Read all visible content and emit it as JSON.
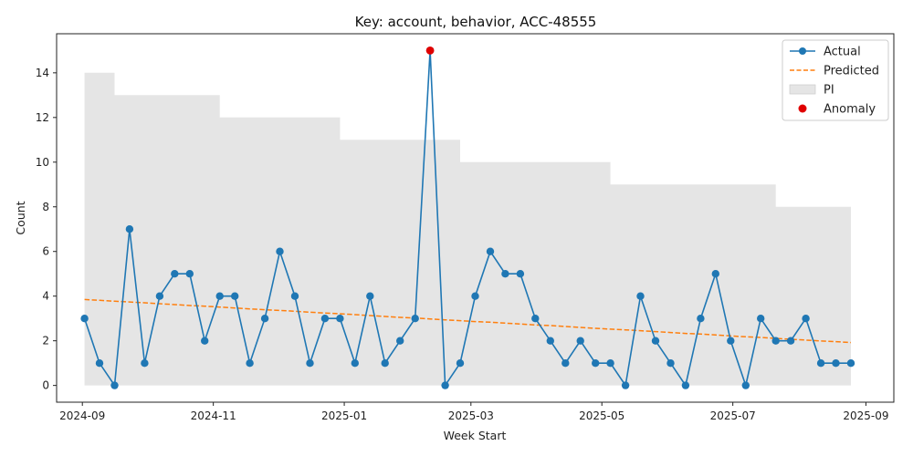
{
  "chart_data": {
    "type": "line",
    "title": "Key: account, behavior, ACC-48555",
    "xlabel": "Week Start",
    "ylabel": "Count",
    "x_ticks": [
      "2024-09",
      "2024-11",
      "2025-01",
      "2025-03",
      "2025-05",
      "2025-07",
      "2025-09"
    ],
    "y_ticks": [
      "0",
      "2",
      "4",
      "6",
      "8",
      "10",
      "12",
      "14"
    ],
    "xlim": [
      "2024-08-20",
      "2025-09-14"
    ],
    "ylim": [
      -0.75,
      15.75
    ],
    "grid": false,
    "legend_position": "top-right",
    "x": [
      "2024-09-02",
      "2024-09-09",
      "2024-09-16",
      "2024-09-23",
      "2024-09-30",
      "2024-10-07",
      "2024-10-14",
      "2024-10-21",
      "2024-10-28",
      "2024-11-04",
      "2024-11-11",
      "2024-11-18",
      "2024-11-25",
      "2024-12-02",
      "2024-12-09",
      "2024-12-16",
      "2024-12-23",
      "2024-12-30",
      "2025-01-06",
      "2025-01-13",
      "2025-01-20",
      "2025-01-27",
      "2025-02-03",
      "2025-02-10",
      "2025-02-17",
      "2025-02-24",
      "2025-03-03",
      "2025-03-10",
      "2025-03-17",
      "2025-03-24",
      "2025-03-31",
      "2025-04-07",
      "2025-04-14",
      "2025-04-21",
      "2025-04-28",
      "2025-05-05",
      "2025-05-12",
      "2025-05-19",
      "2025-05-26",
      "2025-06-02",
      "2025-06-09",
      "2025-06-16",
      "2025-06-23",
      "2025-06-30",
      "2025-07-07",
      "2025-07-14",
      "2025-07-21",
      "2025-07-28",
      "2025-08-04",
      "2025-08-11",
      "2025-08-18",
      "2025-08-25"
    ],
    "series": [
      {
        "name": "Actual",
        "color": "#1f77b4",
        "style": "line-marker",
        "values": [
          3,
          1,
          0,
          7,
          1,
          4,
          5,
          5,
          2,
          4,
          4,
          1,
          3,
          6,
          4,
          1,
          3,
          3,
          1,
          4,
          1,
          2,
          3,
          15,
          0,
          1,
          4,
          6,
          5,
          5,
          3,
          2,
          1,
          2,
          1,
          1,
          0,
          4,
          2,
          1,
          0,
          3,
          5,
          2,
          0,
          3,
          2,
          2,
          3,
          1,
          1,
          1
        ]
      },
      {
        "name": "Predicted",
        "color": "#ff7f0e",
        "style": "dashed",
        "values": [
          3.85,
          3.81,
          3.77,
          3.74,
          3.7,
          3.66,
          3.62,
          3.58,
          3.55,
          3.51,
          3.47,
          3.43,
          3.39,
          3.36,
          3.32,
          3.28,
          3.24,
          3.21,
          3.17,
          3.13,
          3.09,
          3.05,
          3.02,
          2.98,
          2.94,
          2.9,
          2.86,
          2.83,
          2.79,
          2.75,
          2.71,
          2.68,
          2.64,
          2.6,
          2.56,
          2.52,
          2.49,
          2.45,
          2.41,
          2.37,
          2.33,
          2.3,
          2.26,
          2.22,
          2.18,
          2.15,
          2.11,
          2.07,
          2.03,
          1.99,
          1.96,
          1.92
        ]
      },
      {
        "name": "PI",
        "color": "#e5e5e5",
        "style": "band",
        "lower": [
          0,
          0,
          0,
          0,
          0,
          0,
          0,
          0,
          0,
          0,
          0,
          0,
          0,
          0,
          0,
          0,
          0,
          0,
          0,
          0,
          0,
          0,
          0,
          0,
          0,
          0,
          0,
          0,
          0,
          0,
          0,
          0,
          0,
          0,
          0,
          0,
          0,
          0,
          0,
          0,
          0,
          0,
          0,
          0,
          0,
          0,
          0,
          0,
          0,
          0,
          0,
          0
        ],
        "upper": [
          14,
          14,
          13,
          13,
          13,
          13,
          13,
          13,
          13,
          12,
          12,
          12,
          12,
          12,
          12,
          12,
          12,
          11,
          11,
          11,
          11,
          11,
          11,
          11,
          11,
          10,
          10,
          10,
          10,
          10,
          10,
          10,
          10,
          10,
          10,
          9,
          9,
          9,
          9,
          9,
          9,
          9,
          9,
          9,
          9,
          9,
          8,
          8,
          8,
          8,
          8,
          8
        ]
      },
      {
        "name": "Anomaly",
        "color": "#e00000",
        "style": "point",
        "points": [
          {
            "x": "2025-02-10",
            "y": 15
          }
        ]
      }
    ]
  }
}
